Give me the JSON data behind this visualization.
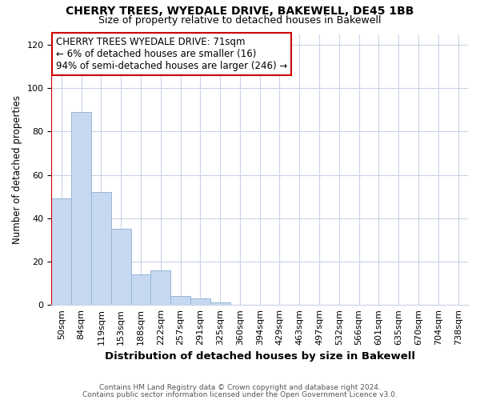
{
  "title": "CHERRY TREES, WYEDALE DRIVE, BAKEWELL, DE45 1BB",
  "subtitle": "Size of property relative to detached houses in Bakewell",
  "xlabel": "Distribution of detached houses by size in Bakewell",
  "ylabel": "Number of detached properties",
  "footnote1": "Contains HM Land Registry data © Crown copyright and database right 2024.",
  "footnote2": "Contains public sector information licensed under the Open Government Licence v3.0.",
  "bin_labels": [
    "50sqm",
    "84sqm",
    "119sqm",
    "153sqm",
    "188sqm",
    "222sqm",
    "257sqm",
    "291sqm",
    "325sqm",
    "360sqm",
    "394sqm",
    "429sqm",
    "463sqm",
    "497sqm",
    "532sqm",
    "566sqm",
    "601sqm",
    "635sqm",
    "670sqm",
    "704sqm",
    "738sqm"
  ],
  "bar_heights": [
    49,
    89,
    52,
    35,
    14,
    16,
    4,
    3,
    1,
    0,
    0,
    0,
    0,
    0,
    0,
    0,
    0,
    0,
    0,
    0,
    0
  ],
  "bar_color": "#c6d9f1",
  "bar_edge_color": "#9ab5d9",
  "ylim": [
    0,
    125
  ],
  "yticks": [
    0,
    20,
    40,
    60,
    80,
    100,
    120
  ],
  "annotation_text": "CHERRY TREES WYEDALE DRIVE: 71sqm\n← 6% of detached houses are smaller (16)\n94% of semi-detached houses are larger (246) →",
  "annotation_box_color": "#ffffff",
  "annotation_border_color": "#cc0000",
  "red_line_color": "#cc0000",
  "grid_color": "#c8d4e8",
  "background_color": "#ffffff",
  "title_fontsize": 10,
  "subtitle_fontsize": 9,
  "ylabel_fontsize": 8.5,
  "xlabel_fontsize": 9.5,
  "footnote_fontsize": 6.5,
  "annotation_fontsize": 8.5,
  "tick_fontsize": 8
}
